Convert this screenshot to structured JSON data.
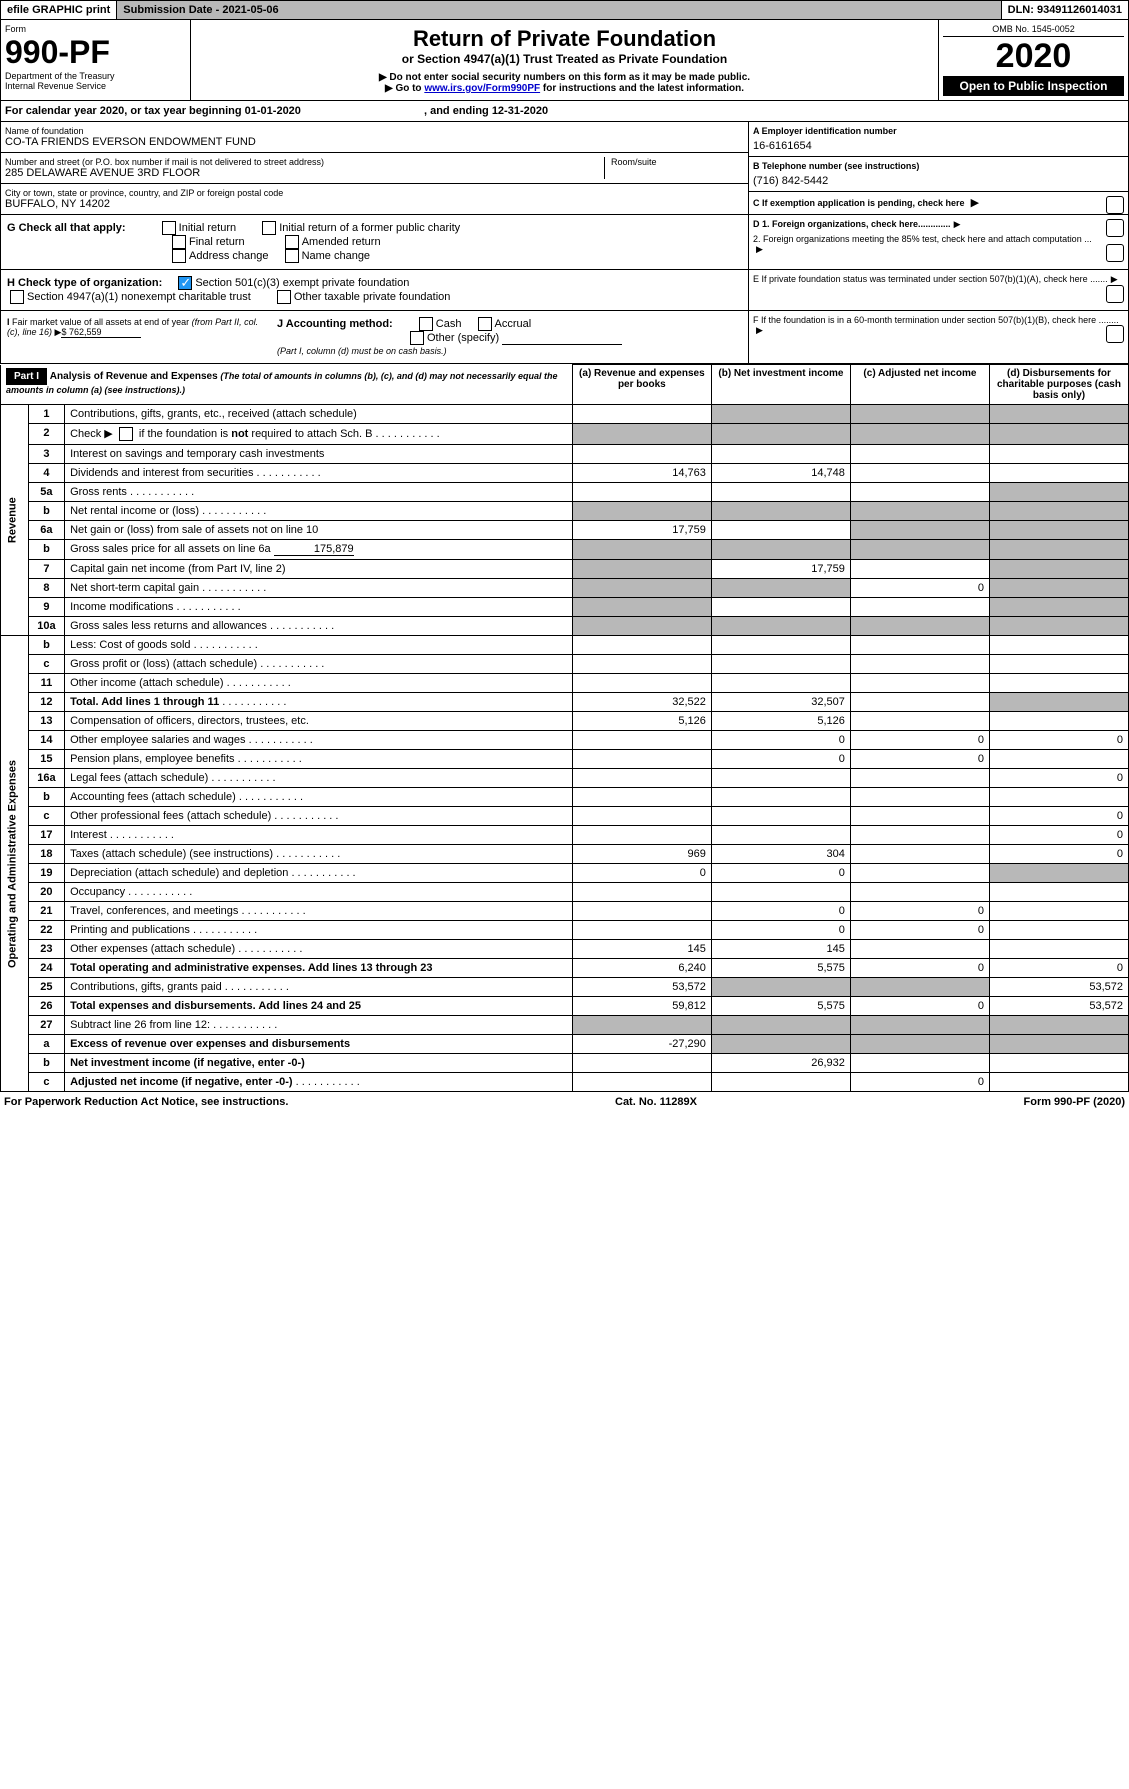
{
  "topbar": {
    "efile": "efile GRAPHIC print",
    "subdate_label": "Submission Date - ",
    "subdate": "2021-05-06",
    "dln_label": "DLN: ",
    "dln": "93491126014031"
  },
  "hdr": {
    "form": "Form",
    "formno": "990-PF",
    "dept": "Department of the Treasury",
    "irs": "Internal Revenue Service",
    "title": "Return of Private Foundation",
    "subtitle": "or Section 4947(a)(1) Trust Treated as Private Foundation",
    "bullet1": "▶ Do not enter social security numbers on this form as it may be made public.",
    "bullet2_pre": "▶ Go to ",
    "bullet2_link": "www.irs.gov/Form990PF",
    "bullet2_post": " for instructions and the latest information.",
    "omb": "OMB No. 1545-0052",
    "year": "2020",
    "open": "Open to Public Inspection"
  },
  "cal": {
    "text": "For calendar year 2020, or tax year beginning 01-01-2020",
    "end": ", and ending 12-31-2020"
  },
  "info": {
    "name_label": "Name of foundation",
    "name": "CO-TA FRIENDS EVERSON ENDOWMENT FUND",
    "addr_label": "Number and street (or P.O. box number if mail is not delivered to street address)",
    "addr": "285 DELAWARE AVENUE 3RD FLOOR",
    "room": "Room/suite",
    "city_label": "City or town, state or province, country, and ZIP or foreign postal code",
    "city": "BUFFALO, NY  14202",
    "a_label": "A Employer identification number",
    "a": "16-6161654",
    "b_label": "B Telephone number (see instructions)",
    "b": "(716) 842-5442",
    "c": "C If exemption application is pending, check here"
  },
  "g": {
    "label": "G Check all that apply:",
    "init": "Initial return",
    "initpc": "Initial return of a former public charity",
    "final": "Final return",
    "amend": "Amended return",
    "addr": "Address change",
    "name": "Name change"
  },
  "h": {
    "label": "H Check type of organization:",
    "s501": "Section 501(c)(3) exempt private foundation",
    "s4947": "Section 4947(a)(1) nonexempt charitable trust",
    "other": "Other taxable private foundation"
  },
  "d": {
    "d1": "D 1. Foreign organizations, check here.............",
    "d2": "2. Foreign organizations meeting the 85% test, check here and attach computation ..."
  },
  "e": "E  If private foundation status was terminated under section 507(b)(1)(A), check here .......",
  "i": {
    "label": "I Fair market value of all assets at end of year (from Part II, col. (c), line 16) ▶",
    "val": "$  762,559"
  },
  "j": {
    "label": "J Accounting method:",
    "cash": "Cash",
    "accrual": "Accrual",
    "other": "Other (specify)",
    "note": "(Part I, column (d) must be on cash basis.)"
  },
  "f": "F  If the foundation is in a 60-month termination under section 507(b)(1)(B), check here ........",
  "part1": {
    "label": "Part I",
    "title": "Analysis of Revenue and Expenses",
    "note": "(The total of amounts in columns (b), (c), and (d) may not necessarily equal the amounts in column (a) (see instructions).)",
    "cols": {
      "a": "(a) Revenue and expenses per books",
      "b": "(b) Net investment income",
      "c": "(c) Adjusted net income",
      "d": "(d) Disbursements for charitable purposes (cash basis only)"
    }
  },
  "rev_label": "Revenue",
  "exp_label": "Operating and Administrative Expenses",
  "rows": [
    {
      "n": "1",
      "d": "Contributions, gifts, grants, etc., received (attach schedule)"
    },
    {
      "n": "2",
      "d": "Check ▶ ☐ if the foundation is not required to attach Sch. B"
    },
    {
      "n": "3",
      "d": "Interest on savings and temporary cash investments"
    },
    {
      "n": "4",
      "d": "Dividends and interest from securities",
      "a": "14,763",
      "b": "14,748"
    },
    {
      "n": "5a",
      "d": "Gross rents"
    },
    {
      "n": "b",
      "d": "Net rental income or (loss)"
    },
    {
      "n": "6a",
      "d": "Net gain or (loss) from sale of assets not on line 10",
      "a": "17,759"
    },
    {
      "n": "b",
      "d": "Gross sales price for all assets on line 6a",
      "inline": "175,879"
    },
    {
      "n": "7",
      "d": "Capital gain net income (from Part IV, line 2)",
      "b": "17,759"
    },
    {
      "n": "8",
      "d": "Net short-term capital gain",
      "c": "0"
    },
    {
      "n": "9",
      "d": "Income modifications"
    },
    {
      "n": "10a",
      "d": "Gross sales less returns and allowances"
    },
    {
      "n": "b",
      "d": "Less: Cost of goods sold"
    },
    {
      "n": "c",
      "d": "Gross profit or (loss) (attach schedule)"
    },
    {
      "n": "11",
      "d": "Other income (attach schedule)"
    },
    {
      "n": "12",
      "d": "Total. Add lines 1 through 11",
      "a": "32,522",
      "b": "32,507",
      "bold": true
    },
    {
      "n": "13",
      "d": "Compensation of officers, directors, trustees, etc.",
      "a": "5,126",
      "b": "5,126"
    },
    {
      "n": "14",
      "d": "Other employee salaries and wages",
      "b": "0",
      "c": "0",
      "dd": "0"
    },
    {
      "n": "15",
      "d": "Pension plans, employee benefits",
      "b": "0",
      "c": "0"
    },
    {
      "n": "16a",
      "d": "Legal fees (attach schedule)",
      "dd": "0"
    },
    {
      "n": "b",
      "d": "Accounting fees (attach schedule)"
    },
    {
      "n": "c",
      "d": "Other professional fees (attach schedule)",
      "dd": "0"
    },
    {
      "n": "17",
      "d": "Interest",
      "dd": "0"
    },
    {
      "n": "18",
      "d": "Taxes (attach schedule) (see instructions)",
      "a": "969",
      "b": "304",
      "dd": "0"
    },
    {
      "n": "19",
      "d": "Depreciation (attach schedule) and depletion",
      "a": "0",
      "b": "0"
    },
    {
      "n": "20",
      "d": "Occupancy"
    },
    {
      "n": "21",
      "d": "Travel, conferences, and meetings",
      "b": "0",
      "c": "0"
    },
    {
      "n": "22",
      "d": "Printing and publications",
      "b": "0",
      "c": "0"
    },
    {
      "n": "23",
      "d": "Other expenses (attach schedule)",
      "a": "145",
      "b": "145"
    },
    {
      "n": "24",
      "d": "Total operating and administrative expenses. Add lines 13 through 23",
      "a": "6,240",
      "b": "5,575",
      "c": "0",
      "dd": "0",
      "bold": true
    },
    {
      "n": "25",
      "d": "Contributions, gifts, grants paid",
      "a": "53,572",
      "dd": "53,572"
    },
    {
      "n": "26",
      "d": "Total expenses and disbursements. Add lines 24 and 25",
      "a": "59,812",
      "b": "5,575",
      "c": "0",
      "dd": "53,572",
      "bold": true
    },
    {
      "n": "27",
      "d": "Subtract line 26 from line 12:"
    },
    {
      "n": "a",
      "d": "Excess of revenue over expenses and disbursements",
      "a": "-27,290",
      "bold": true
    },
    {
      "n": "b",
      "d": "Net investment income (if negative, enter -0-)",
      "b": "26,932",
      "bold": true
    },
    {
      "n": "c",
      "d": "Adjusted net income (if negative, enter -0-)",
      "c": "0",
      "bold": true
    }
  ],
  "footer": {
    "l": "For Paperwork Reduction Act Notice, see instructions.",
    "c": "Cat. No. 11289X",
    "r": "Form 990-PF (2020)"
  }
}
